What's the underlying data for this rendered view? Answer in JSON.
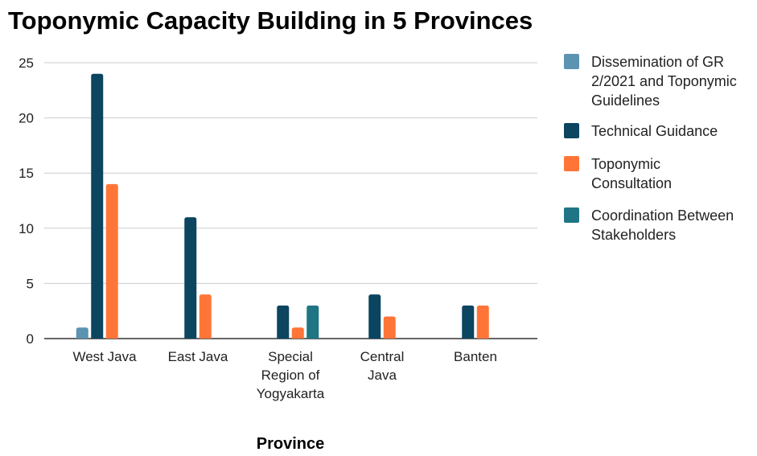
{
  "chart_data": {
    "type": "bar",
    "title": "Toponymic Capacity Building in 5 Provinces",
    "xlabel": "Province",
    "ylabel": "",
    "ylim": [
      0,
      25
    ],
    "yticks": [
      0,
      5,
      10,
      15,
      20,
      25
    ],
    "grid": true,
    "legend_position": "right",
    "categories": [
      [
        "West Java"
      ],
      [
        "East Java"
      ],
      [
        "Special",
        "Region of",
        "Yogyakarta"
      ],
      [
        "Central",
        "Java"
      ],
      [
        "Banten"
      ]
    ],
    "series": [
      {
        "name": "Dissemination of GR 2/2021 and Toponymic Guidelines",
        "legend_lines": [
          "Dissemination of GR",
          "2/2021 and Toponymic",
          "Guidelines"
        ],
        "color": "#5b93b1",
        "values": [
          1,
          0,
          0,
          0,
          0
        ]
      },
      {
        "name": "Technical Guidance",
        "legend_lines": [
          "Technical Guidance"
        ],
        "color": "#0b4560",
        "values": [
          24,
          11,
          3,
          4,
          3
        ]
      },
      {
        "name": "Toponymic Consultation",
        "legend_lines": [
          "Toponymic",
          "Consultation"
        ],
        "color": "#ff7538",
        "values": [
          14,
          4,
          1,
          2,
          3
        ]
      },
      {
        "name": "Coordination Between Stakeholders",
        "legend_lines": [
          "Coordination Between",
          "Stakeholders"
        ],
        "color": "#1f7584",
        "values": [
          0,
          0,
          3,
          0,
          0
        ]
      }
    ]
  }
}
